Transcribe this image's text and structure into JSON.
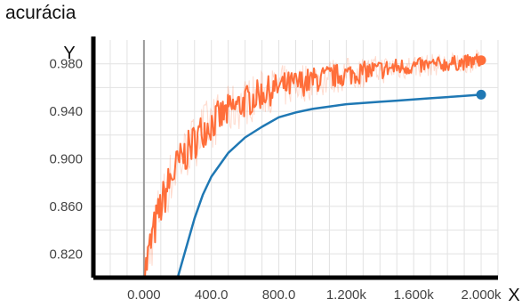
{
  "chart_data": {
    "type": "line",
    "title": "acurácia",
    "xlabel": "X",
    "ylabel": "Y",
    "xlim": [
      -300,
      2100
    ],
    "ylim": [
      0.8,
      1.0
    ],
    "x_ticks": [
      0,
      400,
      800,
      1200,
      1600,
      2000
    ],
    "x_tick_labels": [
      "0.000",
      "400.0",
      "800.0",
      "1.200k",
      "1.600k",
      "2.000k"
    ],
    "y_ticks": [
      0.82,
      0.86,
      0.9,
      0.94,
      0.98
    ],
    "y_tick_labels": [
      "0.820",
      "0.860",
      "0.900",
      "0.940",
      "0.980"
    ],
    "grid": true,
    "series": [
      {
        "color": "#ff6e3a",
        "style": "noisy",
        "x": [
          0,
          50,
          100,
          150,
          200,
          250,
          300,
          350,
          400,
          500,
          600,
          700,
          800,
          900,
          1000,
          1100,
          1200,
          1300,
          1400,
          1500,
          1600,
          1700,
          1800,
          1900,
          2000
        ],
        "values": [
          0.8,
          0.835,
          0.86,
          0.88,
          0.895,
          0.905,
          0.915,
          0.925,
          0.93,
          0.94,
          0.948,
          0.955,
          0.96,
          0.963,
          0.966,
          0.969,
          0.971,
          0.973,
          0.975,
          0.977,
          0.978,
          0.979,
          0.98,
          0.981,
          0.983
        ]
      },
      {
        "color": "#1f78b4",
        "style": "smooth",
        "x": [
          200,
          250,
          300,
          350,
          400,
          500,
          600,
          700,
          800,
          900,
          1000,
          1100,
          1200,
          1300,
          1400,
          1500,
          1600,
          1700,
          1800,
          1900,
          2000
        ],
        "values": [
          0.8,
          0.825,
          0.85,
          0.87,
          0.885,
          0.905,
          0.918,
          0.927,
          0.935,
          0.939,
          0.942,
          0.944,
          0.946,
          0.947,
          0.948,
          0.949,
          0.95,
          0.951,
          0.952,
          0.953,
          0.954
        ]
      }
    ]
  }
}
